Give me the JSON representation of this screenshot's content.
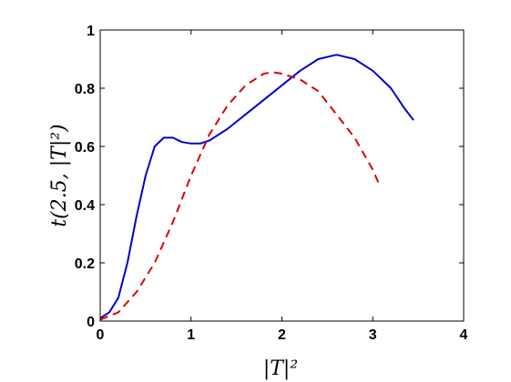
{
  "chart_data": {
    "type": "line",
    "title": "",
    "xlabel": "|T|²",
    "ylabel": "t(2.5, |T|²)",
    "xlim": [
      0,
      4
    ],
    "ylim": [
      0,
      1
    ],
    "xticks": [
      "0",
      "1",
      "2",
      "3",
      "4"
    ],
    "yticks": [
      "0",
      "0.2",
      "0.4",
      "0.6",
      "0.8",
      "1"
    ],
    "grid": false,
    "legend": "none",
    "series": [
      {
        "color": "#0000cc",
        "style": "solid",
        "points": [
          [
            0.0,
            0.01
          ],
          [
            0.1,
            0.03
          ],
          [
            0.2,
            0.08
          ],
          [
            0.3,
            0.2
          ],
          [
            0.4,
            0.36
          ],
          [
            0.5,
            0.5
          ],
          [
            0.6,
            0.6
          ],
          [
            0.7,
            0.63
          ],
          [
            0.8,
            0.63
          ],
          [
            0.9,
            0.615
          ],
          [
            1.0,
            0.61
          ],
          [
            1.1,
            0.61
          ],
          [
            1.2,
            0.62
          ],
          [
            1.4,
            0.66
          ],
          [
            1.6,
            0.71
          ],
          [
            1.8,
            0.76
          ],
          [
            2.0,
            0.81
          ],
          [
            2.2,
            0.86
          ],
          [
            2.4,
            0.9
          ],
          [
            2.6,
            0.915
          ],
          [
            2.8,
            0.9
          ],
          [
            3.0,
            0.86
          ],
          [
            3.2,
            0.8
          ],
          [
            3.35,
            0.73
          ],
          [
            3.45,
            0.69
          ]
        ]
      },
      {
        "color": "#dd0000",
        "style": "dashed",
        "points": [
          [
            0.0,
            0.005
          ],
          [
            0.2,
            0.03
          ],
          [
            0.4,
            0.1
          ],
          [
            0.6,
            0.2
          ],
          [
            0.8,
            0.34
          ],
          [
            1.0,
            0.5
          ],
          [
            1.2,
            0.64
          ],
          [
            1.4,
            0.74
          ],
          [
            1.6,
            0.81
          ],
          [
            1.8,
            0.85
          ],
          [
            1.9,
            0.855
          ],
          [
            2.0,
            0.85
          ],
          [
            2.2,
            0.83
          ],
          [
            2.4,
            0.79
          ],
          [
            2.6,
            0.71
          ],
          [
            2.8,
            0.63
          ],
          [
            3.0,
            0.52
          ],
          [
            3.07,
            0.47
          ]
        ]
      }
    ]
  }
}
